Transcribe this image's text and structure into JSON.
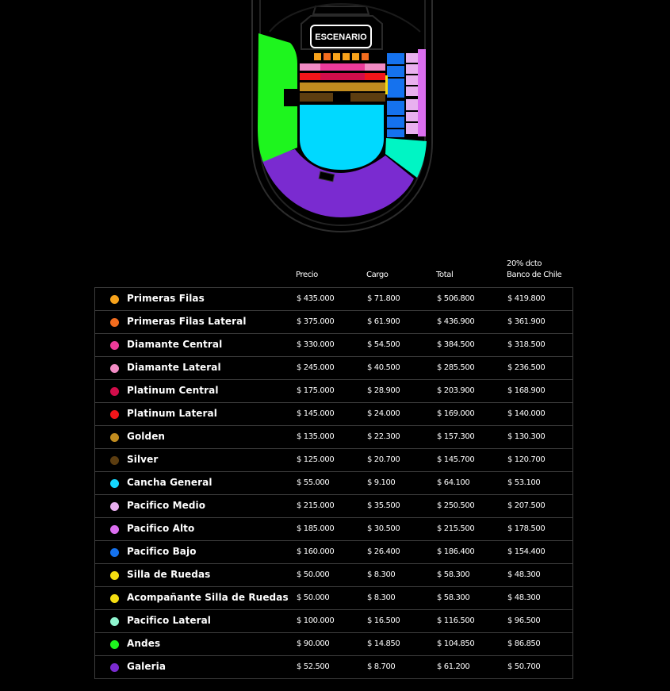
{
  "stage_label": "ESCENARIO",
  "columns": {
    "price": "Precio",
    "fee": "Cargo",
    "total": "Total",
    "discount_line1": "20% dcto",
    "discount_line2": "Banco de Chile"
  },
  "zones": [
    {
      "name": "Primeras Filas",
      "color": "#f7a21b",
      "price": "$ 435.000",
      "fee": "$ 71.800",
      "total": "$ 506.800",
      "discount": "$ 419.800"
    },
    {
      "name": "Primeras Filas Lateral",
      "color": "#f26c1e",
      "price": "$ 375.000",
      "fee": "$ 61.900",
      "total": "$ 436.900",
      "discount": "$ 361.900"
    },
    {
      "name": "Diamante Central",
      "color": "#ec3b9a",
      "price": "$ 330.000",
      "fee": "$ 54.500",
      "total": "$ 384.500",
      "discount": "$ 318.500"
    },
    {
      "name": "Diamante Lateral",
      "color": "#f28bc4",
      "price": "$ 245.000",
      "fee": "$ 40.500",
      "total": "$ 285.500",
      "discount": "$ 236.500"
    },
    {
      "name": "Platinum Central",
      "color": "#d10d4a",
      "price": "$ 175.000",
      "fee": "$ 28.900",
      "total": "$ 203.900",
      "discount": "$ 168.900"
    },
    {
      "name": "Platinum Lateral",
      "color": "#f2151a",
      "price": "$ 145.000",
      "fee": "$ 24.000",
      "total": "$ 169.000",
      "discount": "$ 140.000"
    },
    {
      "name": "Golden",
      "color": "#c18c1f",
      "price": "$ 135.000",
      "fee": "$ 22.300",
      "total": "$ 157.300",
      "discount": "$ 130.300"
    },
    {
      "name": "Silver",
      "color": "#5c3d10",
      "price": "$ 125.000",
      "fee": "$ 20.700",
      "total": "$ 145.700",
      "discount": "$ 120.700"
    },
    {
      "name": "Cancha General",
      "color": "#15d7ff",
      "price": "$ 55.000",
      "fee": "$ 9.100",
      "total": "$ 64.100",
      "discount": "$ 53.100"
    },
    {
      "name": "Pacifico Medio",
      "color": "#e8b0ef",
      "price": "$ 215.000",
      "fee": "$ 35.500",
      "total": "$ 250.500",
      "discount": "$ 207.500"
    },
    {
      "name": "Pacifico Alto",
      "color": "#db6ef0",
      "price": "$ 185.000",
      "fee": "$ 30.500",
      "total": "$ 215.500",
      "discount": "$ 178.500"
    },
    {
      "name": "Pacifico Bajo",
      "color": "#1572ee",
      "price": "$ 160.000",
      "fee": "$ 26.400",
      "total": "$ 186.400",
      "discount": "$ 154.400"
    },
    {
      "name": "Silla de Ruedas",
      "color": "#f4dd11",
      "price": "$ 50.000",
      "fee": "$ 8.300",
      "total": "$ 58.300",
      "discount": "$ 48.300"
    },
    {
      "name": "Acompañante Silla de Ruedas",
      "color": "#f4dd11",
      "price": "$ 50.000",
      "fee": "$ 8.300",
      "total": "$ 58.300",
      "discount": "$ 48.300"
    },
    {
      "name": "Pacifico Lateral",
      "color": "#8ff5cf",
      "price": "$ 100.000",
      "fee": "$ 16.500",
      "total": "$ 116.500",
      "discount": "$ 96.500"
    },
    {
      "name": "Andes",
      "color": "#1ef51e",
      "price": "$ 90.000",
      "fee": "$ 14.850",
      "total": "$ 104.850",
      "discount": "$ 86.850"
    },
    {
      "name": "Galeria",
      "color": "#7a2bd0",
      "price": "$ 52.500",
      "fee": "$ 8.700",
      "total": "$ 61.200",
      "discount": "$ 50.700"
    }
  ],
  "map_colors": {
    "andes": "#1ef51e",
    "galeria": "#7a2bd0",
    "cancha": "#00d9ff",
    "pacifico_lateral": "#00f5c4",
    "pacifico_bajo": "#1572ee",
    "pacifico_medio": "#e8b0ef",
    "pacifico_alto": "#db6ef0"
  }
}
